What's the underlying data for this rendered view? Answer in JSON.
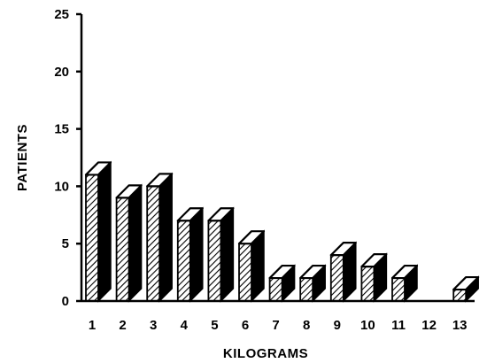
{
  "chart_data": {
    "type": "bar",
    "style": "3d-hatched-bars",
    "title": "",
    "xlabel": "KILOGRAMS",
    "ylabel": "PATIENTS",
    "categories": [
      "1",
      "2",
      "3",
      "4",
      "5",
      "6",
      "7",
      "8",
      "9",
      "10",
      "11",
      "12",
      "13"
    ],
    "values": [
      11,
      9,
      10,
      7,
      7,
      5,
      2,
      2,
      4,
      3,
      2,
      0,
      1
    ],
    "ylim": [
      0,
      25
    ],
    "yticks": [
      0,
      5,
      10,
      15,
      20,
      25
    ],
    "grid": false,
    "legend": "none",
    "colors": {
      "bar_front_fill": "#ffffff",
      "bar_hatch": "#000000",
      "bar_side": "#000000",
      "bar_top": "#ffffff",
      "axis": "#000000"
    }
  }
}
